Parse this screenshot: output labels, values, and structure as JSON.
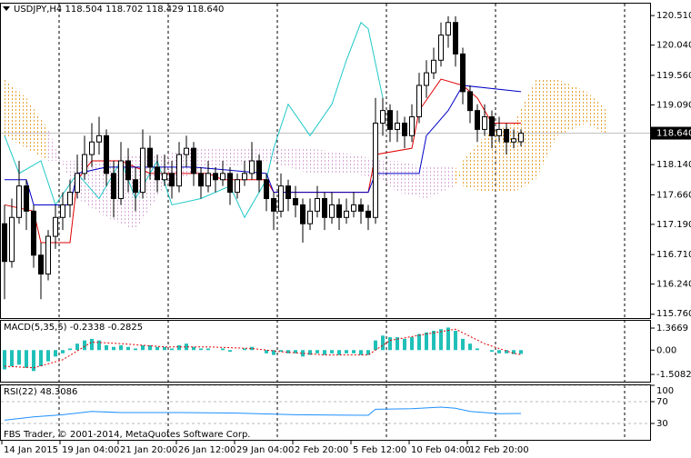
{
  "chart_data": [
    {
      "type": "candlestick",
      "title": "USDJPY,H4  118.504 118.702 118.429 118.640",
      "xlim": [
        -0.625,
        88.75
      ],
      "xticks": [
        {
          "value": 0,
          "label": "14 Jan 2015"
        },
        {
          "value": 8,
          "label": "19 Jan 04:00"
        },
        {
          "value": 16,
          "label": "21 Jan 20:00"
        },
        {
          "value": 24,
          "label": "26 Jan 12:00"
        },
        {
          "value": 32,
          "label": "29 Jan 04:00"
        },
        {
          "value": 40,
          "label": "2 Feb 20:00"
        },
        {
          "value": 48,
          "label": "5 Feb 12:00"
        },
        {
          "value": 56,
          "label": "10 Feb 04:00"
        },
        {
          "value": 64,
          "label": "12 Feb 20:00"
        }
      ],
      "xgrid": [
        7.5,
        22.5,
        37.5,
        52.5,
        67.5,
        85.25
      ],
      "ylim": [
        115.7,
        120.7
      ],
      "yticks": [
        {
          "value": 120.51,
          "label": "120.510"
        },
        {
          "value": 120.04,
          "label": "120.040"
        },
        {
          "value": 119.56,
          "label": "119.560"
        },
        {
          "value": 119.09,
          "label": "119.090"
        },
        {
          "value": 118.14,
          "label": "118.140"
        },
        {
          "value": 117.66,
          "label": "117.660"
        },
        {
          "value": 117.19,
          "label": "117.190"
        },
        {
          "value": 116.71,
          "label": "116.710"
        },
        {
          "value": 116.24,
          "label": "116.240"
        },
        {
          "value": 115.76,
          "label": "115.760"
        }
      ],
      "current_price": {
        "value": 118.64,
        "label": "118.640"
      },
      "candles": [
        [
          117.2,
          117.5,
          116.0,
          116.6
        ],
        [
          116.6,
          117.6,
          116.5,
          117.3
        ],
        [
          117.3,
          118.2,
          117.2,
          117.8
        ],
        [
          117.8,
          117.9,
          117.1,
          117.4
        ],
        [
          117.4,
          117.5,
          116.5,
          116.7
        ],
        [
          116.7,
          116.9,
          116.0,
          116.4
        ],
        [
          116.4,
          117.1,
          116.3,
          117.0
        ],
        [
          117.0,
          117.5,
          116.8,
          117.3
        ],
        [
          117.3,
          117.7,
          117.1,
          117.5
        ],
        [
          117.5,
          117.9,
          117.3,
          117.7
        ],
        [
          117.7,
          118.3,
          117.6,
          118.0
        ],
        [
          118.0,
          118.6,
          117.9,
          118.3
        ],
        [
          118.3,
          118.8,
          118.1,
          118.5
        ],
        [
          118.5,
          118.9,
          118.3,
          118.6
        ],
        [
          118.6,
          118.7,
          117.8,
          118.0
        ],
        [
          118.0,
          118.2,
          117.3,
          117.6
        ],
        [
          117.6,
          118.5,
          117.5,
          118.2
        ],
        [
          118.2,
          118.4,
          117.7,
          117.9
        ],
        [
          117.9,
          118.1,
          117.4,
          117.7
        ],
        [
          117.7,
          118.7,
          117.6,
          118.4
        ],
        [
          118.4,
          118.6,
          117.9,
          118.1
        ],
        [
          118.1,
          118.3,
          117.7,
          117.9
        ],
        [
          117.9,
          118.3,
          117.8,
          118.0
        ],
        [
          118.0,
          118.2,
          117.6,
          117.8
        ],
        [
          117.8,
          118.5,
          117.7,
          118.3
        ],
        [
          118.3,
          118.6,
          118.1,
          118.4
        ],
        [
          118.4,
          118.5,
          117.8,
          118.0
        ],
        [
          118.0,
          118.1,
          117.6,
          117.8
        ],
        [
          117.8,
          118.2,
          117.7,
          118.0
        ],
        [
          118.0,
          118.1,
          117.7,
          117.9
        ],
        [
          117.9,
          118.2,
          117.8,
          118.0
        ],
        [
          118.0,
          118.1,
          117.5,
          117.7
        ],
        [
          117.7,
          118.0,
          117.6,
          117.9
        ],
        [
          117.9,
          118.2,
          117.8,
          118.0
        ],
        [
          118.0,
          118.5,
          117.9,
          118.2
        ],
        [
          118.2,
          118.3,
          117.7,
          117.9
        ],
        [
          117.9,
          118.0,
          117.4,
          117.6
        ],
        [
          117.6,
          117.7,
          117.1,
          117.4
        ],
        [
          117.4,
          118.0,
          117.3,
          117.8
        ],
        [
          117.8,
          117.9,
          117.4,
          117.6
        ],
        [
          117.6,
          117.8,
          117.3,
          117.5
        ],
        [
          117.5,
          117.6,
          116.9,
          117.2
        ],
        [
          117.2,
          117.6,
          117.1,
          117.4
        ],
        [
          117.4,
          117.8,
          117.3,
          117.6
        ],
        [
          117.6,
          117.7,
          117.1,
          117.3
        ],
        [
          117.3,
          117.7,
          117.2,
          117.5
        ],
        [
          117.5,
          117.6,
          117.1,
          117.3
        ],
        [
          117.3,
          117.6,
          117.2,
          117.4
        ],
        [
          117.4,
          117.7,
          117.3,
          117.5
        ],
        [
          117.5,
          117.6,
          117.2,
          117.4
        ],
        [
          117.4,
          117.5,
          117.1,
          117.3
        ],
        [
          117.3,
          119.2,
          117.2,
          118.8
        ],
        [
          118.8,
          119.2,
          118.6,
          119.0
        ],
        [
          119.0,
          119.1,
          118.5,
          118.7
        ],
        [
          118.7,
          119.0,
          118.5,
          118.8
        ],
        [
          118.8,
          118.9,
          118.4,
          118.6
        ],
        [
          118.6,
          119.1,
          118.5,
          118.9
        ],
        [
          118.9,
          119.6,
          118.8,
          119.4
        ],
        [
          119.4,
          119.8,
          119.2,
          119.6
        ],
        [
          119.6,
          120.0,
          119.5,
          119.8
        ],
        [
          119.8,
          120.4,
          119.7,
          120.2
        ],
        [
          120.2,
          120.5,
          120.0,
          120.4
        ],
        [
          120.4,
          120.5,
          119.7,
          119.9
        ],
        [
          119.9,
          120.0,
          119.1,
          119.3
        ],
        [
          119.3,
          119.4,
          118.8,
          119.0
        ],
        [
          119.0,
          119.1,
          118.5,
          118.7
        ],
        [
          118.7,
          119.1,
          118.6,
          118.9
        ],
        [
          118.9,
          119.0,
          118.4,
          118.6
        ],
        [
          118.6,
          118.9,
          118.5,
          118.7
        ],
        [
          118.7,
          118.8,
          118.3,
          118.5
        ],
        [
          118.5,
          118.7,
          118.4,
          118.55
        ],
        [
          118.504,
          118.702,
          118.429,
          118.64
        ]
      ],
      "cloud": {
        "colors": [
          "#e8a030",
          "#d8a8d8"
        ],
        "x": [
          0,
          3,
          6,
          10,
          14,
          18,
          22,
          26,
          30,
          36,
          42,
          48,
          52,
          54,
          58,
          62,
          63,
          66,
          70,
          73,
          76,
          80,
          83
        ],
        "span_a": [
          119.5,
          119.2,
          118.7,
          117.6,
          117.3,
          117.1,
          117.8,
          118.0,
          118.1,
          118.2,
          118.0,
          118.0,
          117.9,
          117.7,
          117.6,
          117.8,
          118.2,
          118.6,
          118.8,
          119.5,
          119.5,
          119.3,
          119.0
        ],
        "span_b": [
          118.6,
          118.4,
          118.2,
          118.2,
          118.2,
          118.3,
          118.3,
          118.4,
          118.4,
          118.4,
          118.4,
          118.3,
          118.2,
          118.2,
          118.1,
          118.1,
          117.8,
          117.7,
          117.7,
          117.9,
          118.6,
          118.8,
          118.6
        ]
      },
      "lines": [
        {
          "color": "#20c8c8",
          "x": [
            0,
            2,
            5,
            7,
            10,
            13,
            16,
            18,
            21,
            23,
            27,
            31,
            33,
            36,
            37,
            39,
            42,
            45,
            47,
            49,
            50,
            52
          ],
          "values": [
            118.6,
            118.0,
            118.2,
            117.5,
            118.0,
            117.6,
            118.2,
            117.6,
            118.2,
            117.5,
            117.6,
            117.8,
            117.3,
            117.9,
            118.4,
            119.1,
            118.6,
            119.1,
            119.8,
            120.4,
            120.3,
            119.2
          ]
        },
        {
          "color": "#e00000",
          "x": [
            0,
            4,
            5,
            9,
            10,
            12,
            16,
            20,
            28,
            30,
            36,
            37,
            50,
            51,
            56,
            57,
            60,
            63,
            65,
            67,
            71
          ],
          "values": [
            117.5,
            117.4,
            116.9,
            116.9,
            117.9,
            118.2,
            118.2,
            118.0,
            118.0,
            117.9,
            117.9,
            117.7,
            117.7,
            118.3,
            118.4,
            119.0,
            119.5,
            119.4,
            119.2,
            118.8,
            118.8
          ]
        },
        {
          "color": "#0000c8",
          "x": [
            0,
            3,
            4,
            9,
            10,
            14,
            26,
            36,
            37,
            50,
            51,
            57,
            58,
            61,
            63,
            71
          ],
          "values": [
            117.9,
            117.9,
            117.5,
            117.5,
            118.0,
            118.1,
            118.1,
            118.0,
            117.7,
            117.7,
            118.0,
            118.0,
            118.6,
            119.0,
            119.4,
            119.3
          ]
        }
      ]
    },
    {
      "type": "bar",
      "title": "MACD(5,35,5) -0.2338 -0.2825",
      "color": "#20c0b8",
      "ylim": [
        -1.96,
        1.82
      ],
      "yticks": [
        1.3669,
        {
          "value": 0,
          "label": "0.00"
        },
        -1.5082
      ],
      "values": [
        -1.2,
        -1.0,
        -0.9,
        -1.1,
        -1.3,
        -1.0,
        -0.7,
        -0.4,
        -0.2,
        0.1,
        0.4,
        0.6,
        0.7,
        0.6,
        0.3,
        0.2,
        0.3,
        0.2,
        0.1,
        0.3,
        0.3,
        0.2,
        0.2,
        0.1,
        0.3,
        0.4,
        0.2,
        0.1,
        0.1,
        0.0,
        0.1,
        -0.1,
        0.0,
        0.1,
        0.2,
        0.0,
        -0.2,
        -0.3,
        -0.1,
        -0.2,
        -0.2,
        -0.4,
        -0.3,
        -0.2,
        -0.3,
        -0.2,
        -0.3,
        -0.2,
        -0.2,
        -0.3,
        -0.3,
        0.6,
        0.9,
        0.8,
        0.8,
        0.7,
        0.8,
        1.0,
        1.1,
        1.2,
        1.3,
        1.4,
        1.2,
        0.7,
        0.4,
        0.1,
        0.0,
        -0.1,
        -0.2,
        -0.2,
        -0.25,
        -0.2338
      ],
      "signal": {
        "color": "#e00000",
        "x": [
          0,
          4,
          8,
          12,
          16,
          22,
          28,
          34,
          38,
          44,
          50,
          53,
          58,
          62,
          66,
          70,
          71
        ],
        "values": [
          -1.0,
          -1.1,
          -0.6,
          0.5,
          0.4,
          0.2,
          0.2,
          0.1,
          -0.1,
          -0.3,
          -0.3,
          0.6,
          1.0,
          1.3,
          0.4,
          -0.2,
          -0.2825
        ]
      }
    },
    {
      "type": "line",
      "title": "RSI(22) 48.3086",
      "color": "#1e90ff",
      "ylim": [
        0,
        100
      ],
      "yticks": [
        100,
        70,
        30
      ],
      "x": [
        0,
        4,
        8,
        12,
        16,
        24,
        32,
        40,
        50,
        51,
        56,
        60,
        62,
        64,
        68,
        71
      ],
      "values": [
        36,
        42,
        46,
        52,
        50,
        50,
        49,
        46,
        45,
        56,
        57,
        60,
        58,
        52,
        48,
        48.3086
      ]
    }
  ],
  "footer": "FBS Trader, © 2001-2014, MetaQuotes Software Corp."
}
